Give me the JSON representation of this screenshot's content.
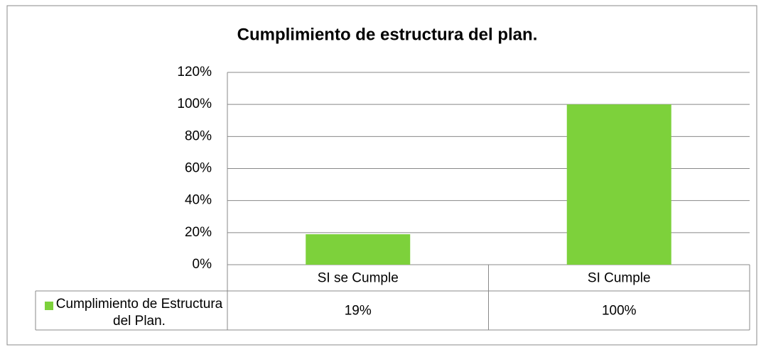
{
  "chart_data": {
    "type": "bar",
    "title": "Cumplimiento  de estructura del plan.",
    "categories": [
      "SI se Cumple",
      "SI Cumple"
    ],
    "series": [
      {
        "name": "Cumplimiento de Estructura del Plan.",
        "color": "#7dd13b",
        "values": [
          19,
          100
        ],
        "value_labels": [
          "19%",
          "100%"
        ]
      }
    ],
    "ylim": [
      0,
      120
    ],
    "yticks": [
      {
        "value": 0,
        "label": "0%"
      },
      {
        "value": 20,
        "label": "20%"
      },
      {
        "value": 40,
        "label": "40%"
      },
      {
        "value": 60,
        "label": "60%"
      },
      {
        "value": 80,
        "label": "80%"
      },
      {
        "value": 100,
        "label": "100%"
      },
      {
        "value": 120,
        "label": "120%"
      }
    ],
    "grid": true
  }
}
